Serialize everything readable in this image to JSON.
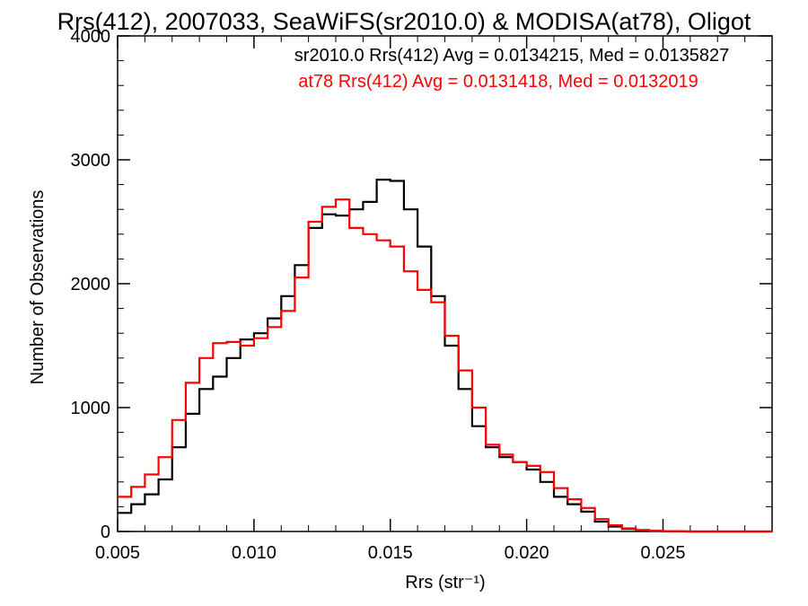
{
  "chart_data": {
    "type": "line",
    "title": "Rrs(412), 2007033, SeaWiFS(sr2010.0) & MODISA(at78), Oligot",
    "xlabel": "Rrs (str⁻¹)",
    "ylabel": "Number of Observations",
    "xlim": [
      0.005,
      0.029
    ],
    "ylim": [
      0,
      4000
    ],
    "x_ticks": [
      0.005,
      0.01,
      0.015,
      0.02,
      0.025
    ],
    "x_tick_labels": [
      "0.005",
      "0.010",
      "0.015",
      "0.020",
      "0.025"
    ],
    "y_ticks": [
      0,
      1000,
      2000,
      3000,
      4000
    ],
    "y_tick_labels": [
      "0",
      "1000",
      "2000",
      "3000",
      "4000"
    ],
    "grid": false,
    "annotations": [
      {
        "text": "sr2010.0 Rrs(412) Avg = 0.0134215, Med = 0.0135827",
        "color": "#000000"
      },
      {
        "text": "at78 Rrs(412) Avg = 0.0131418, Med = 0.0132019",
        "color": "#ff0000"
      }
    ],
    "series": [
      {
        "color": "#000000",
        "x": [
          0.005,
          0.0055,
          0.006,
          0.0065,
          0.007,
          0.0075,
          0.008,
          0.0085,
          0.009,
          0.0095,
          0.01,
          0.0105,
          0.011,
          0.0115,
          0.012,
          0.0125,
          0.013,
          0.0135,
          0.014,
          0.0145,
          0.015,
          0.0155,
          0.016,
          0.0165,
          0.017,
          0.0175,
          0.018,
          0.0185,
          0.019,
          0.0195,
          0.02,
          0.0205,
          0.021,
          0.0215,
          0.022,
          0.0225,
          0.023,
          0.0235,
          0.024,
          0.0245,
          0.025,
          0.026,
          0.027,
          0.028,
          0.029
        ],
        "values": [
          150,
          220,
          300,
          420,
          680,
          950,
          1150,
          1250,
          1400,
          1550,
          1600,
          1720,
          1900,
          2150,
          2450,
          2560,
          2550,
          2600,
          2660,
          2840,
          2830,
          2600,
          2300,
          1900,
          1500,
          1150,
          850,
          680,
          600,
          560,
          500,
          400,
          280,
          220,
          160,
          80,
          40,
          20,
          10,
          5,
          2,
          0,
          0,
          0,
          0
        ]
      },
      {
        "color": "#ff0000",
        "x": [
          0.005,
          0.0055,
          0.006,
          0.0065,
          0.007,
          0.0075,
          0.008,
          0.0085,
          0.009,
          0.0095,
          0.01,
          0.0105,
          0.011,
          0.0115,
          0.012,
          0.0125,
          0.013,
          0.0135,
          0.014,
          0.0145,
          0.015,
          0.0155,
          0.016,
          0.0165,
          0.017,
          0.0175,
          0.018,
          0.0185,
          0.019,
          0.0195,
          0.02,
          0.0205,
          0.021,
          0.0215,
          0.022,
          0.0225,
          0.023,
          0.0235,
          0.024,
          0.0245,
          0.025,
          0.026,
          0.027,
          0.028,
          0.029
        ],
        "values": [
          280,
          360,
          460,
          600,
          900,
          1200,
          1400,
          1520,
          1530,
          1500,
          1560,
          1650,
          1780,
          2050,
          2500,
          2620,
          2680,
          2450,
          2400,
          2350,
          2300,
          2100,
          1950,
          1850,
          1580,
          1300,
          1000,
          700,
          620,
          560,
          530,
          480,
          350,
          260,
          190,
          100,
          50,
          25,
          12,
          6,
          3,
          0,
          0,
          0,
          0
        ]
      }
    ]
  }
}
